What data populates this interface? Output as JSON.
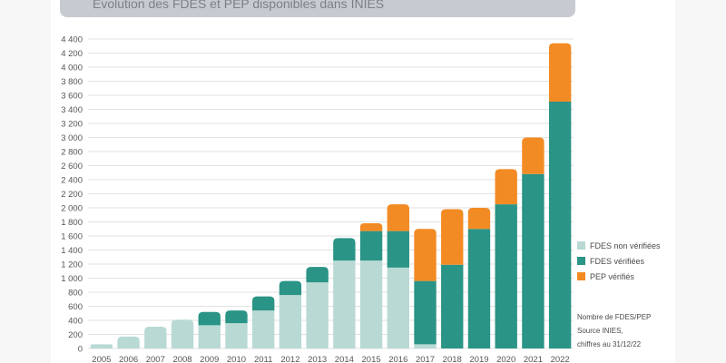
{
  "title": "Evolution des FDES et PEP disponibles dans INIES",
  "source_lines": [
    "Nombre de FDES/PEP",
    "Source INIES,",
    "chiffres au 31/12/22"
  ],
  "colors": {
    "non_verifiees": "#b9d9d4",
    "verifiees": "#2a9486",
    "pep": "#f28b24",
    "grid": "#e2e2e2",
    "tick": "#555555"
  },
  "chart_data": {
    "type": "bar",
    "stacked": true,
    "title": "Evolution des FDES et PEP disponibles dans INIES",
    "xlabel": "",
    "ylabel": "",
    "ylim": [
      0,
      4400
    ],
    "yticks": [
      0,
      200,
      400,
      600,
      800,
      1000,
      1200,
      1400,
      1600,
      1800,
      2000,
      2200,
      2400,
      2600,
      2800,
      3000,
      3200,
      3400,
      3600,
      3800,
      4000,
      4200,
      4400
    ],
    "ytick_labels": [
      "0",
      "200",
      "400",
      "600",
      "800",
      "1 000",
      "1 200",
      "1 400",
      "1 600",
      "1 800",
      "2 000",
      "2 200",
      "2 400",
      "2 600",
      "2 800",
      "3 000",
      "3 200",
      "3 400",
      "3 600",
      "3 800",
      "4 000",
      "4 200",
      "4 400"
    ],
    "categories": [
      "2005",
      "2006",
      "2007",
      "2008",
      "2009",
      "2010",
      "2011",
      "2012",
      "2013",
      "2014",
      "2015",
      "2016",
      "2017",
      "2018",
      "2019",
      "2020",
      "2021",
      "2022"
    ],
    "series": [
      {
        "name": "FDES non vérifiées",
        "color_key": "non_verifiees",
        "values": [
          60,
          170,
          310,
          410,
          330,
          360,
          540,
          760,
          940,
          1250,
          1250,
          1150,
          60,
          0,
          0,
          0,
          0,
          0
        ]
      },
      {
        "name": "FDES vérifiées",
        "color_key": "verifiees",
        "values": [
          0,
          0,
          0,
          0,
          190,
          180,
          200,
          200,
          220,
          320,
          420,
          520,
          900,
          1190,
          1700,
          2050,
          2480,
          3510
        ]
      },
      {
        "name": "PEP vérifiés",
        "color_key": "pep",
        "values": [
          0,
          0,
          0,
          0,
          0,
          0,
          0,
          0,
          0,
          0,
          110,
          380,
          740,
          790,
          300,
          500,
          520,
          830
        ]
      }
    ],
    "legend_position": "right",
    "grid": true
  }
}
